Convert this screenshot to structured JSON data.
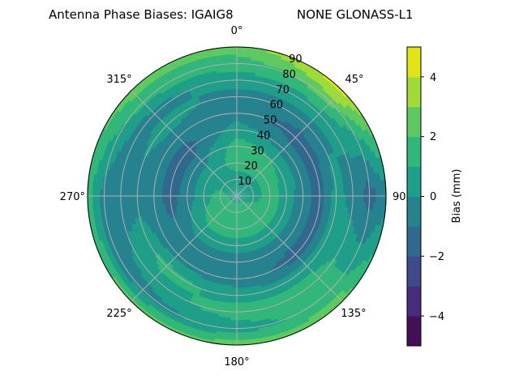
{
  "chart_data": {
    "type": "polar-contour",
    "title_left": "Antenna Phase Biases: IGAIG8",
    "title_right": "NONE GLONASS-L1",
    "angular_ticks": [
      "0°",
      "45°",
      "90°",
      "135°",
      "180°",
      "225°",
      "270°",
      "315°"
    ],
    "radial_ticks": [
      "10",
      "20",
      "30",
      "40",
      "50",
      "60",
      "70",
      "80",
      "90"
    ],
    "radial_range": [
      0,
      90
    ],
    "theta_direction": "clockwise",
    "theta_zero": "north",
    "grid": true,
    "colorbar": {
      "label": "Bias (mm)",
      "ticks": [
        "−4",
        "−2",
        "0",
        "2",
        "4"
      ],
      "tick_values": [
        -4,
        -2,
        0,
        2,
        4
      ],
      "levels": [
        -5,
        -4,
        -3,
        -2,
        -1,
        0,
        1,
        2,
        3,
        4,
        5
      ],
      "colors": [
        "#440f56",
        "#472d7b",
        "#3e4a89",
        "#31688e",
        "#26828e",
        "#1f9e89",
        "#32b67a",
        "#5ec962",
        "#a0da39",
        "#e2e418"
      ],
      "colormap": "viridis"
    },
    "grid_azimuths": [
      0,
      45,
      90,
      135,
      180,
      225,
      270,
      315
    ],
    "grid_zenith": [
      0,
      10,
      20,
      30,
      40,
      50,
      60,
      70,
      80,
      90
    ],
    "values": [
      [
        0.5,
        0.5,
        1.5,
        1.5,
        0.5,
        -0.5,
        -0.5,
        0.5,
        1.5,
        2.5
      ],
      [
        0.5,
        0.5,
        1.5,
        1.0,
        -0.5,
        -1.5,
        -0.5,
        0.5,
        2.5,
        4.5
      ],
      [
        0.5,
        0.5,
        1.5,
        0.5,
        -0.5,
        -1.5,
        0.5,
        -0.5,
        -1.5,
        -0.5
      ],
      [
        0.5,
        1.5,
        1.5,
        0.5,
        -0.5,
        -1.5,
        0.5,
        1.5,
        1.5,
        2.5
      ],
      [
        0.5,
        1.5,
        1.5,
        0.5,
        -0.5,
        -0.5,
        0.5,
        1.5,
        0.5,
        2.5
      ],
      [
        0.5,
        1.5,
        1.5,
        0.5,
        -0.5,
        -0.5,
        1.5,
        0.5,
        -0.5,
        2.5
      ],
      [
        0.5,
        1.5,
        0.5,
        -0.5,
        -1.5,
        -0.5,
        -0.5,
        -0.5,
        -0.5,
        1.5
      ],
      [
        0.5,
        0.5,
        0.5,
        -0.5,
        -1.5,
        -0.5,
        0.5,
        -0.5,
        1.5,
        2.5
      ]
    ]
  }
}
